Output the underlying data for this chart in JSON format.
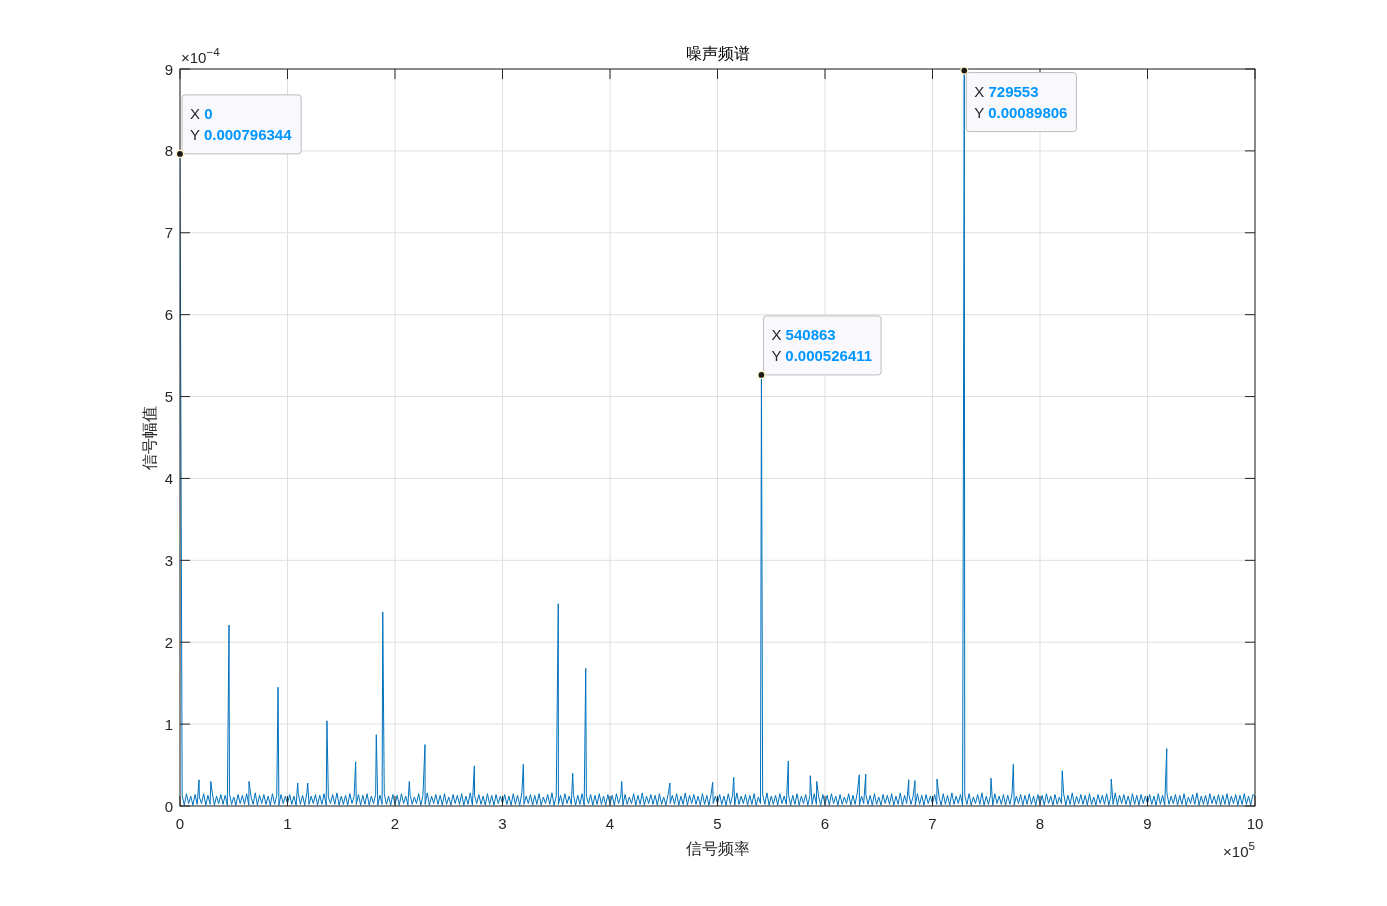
{
  "chart_data": {
    "type": "line",
    "title": "噪声频谱",
    "xlabel": "信号频率",
    "ylabel": "信号幅值",
    "color": "#0072bd",
    "xlim": [
      0,
      10
    ],
    "xticks": [
      0,
      1,
      2,
      3,
      4,
      5,
      6,
      7,
      8,
      9,
      10
    ],
    "ylim": [
      0,
      9
    ],
    "yticks": [
      0,
      1,
      2,
      3,
      4,
      5,
      6,
      7,
      8,
      9
    ],
    "grid": true,
    "annotations": [
      "×10$^{−4}$",
      "×10$^{5}$",
      {
        "text": "X 0\nY 0.000796344",
        "x": 0,
        "y": 7.96344
      },
      {
        "text": "X 540863\nY 0.000526411",
        "x": 5.40863,
        "y": 5.26411
      },
      {
        "text": "X 729553\nY 0.00089806",
        "x": 7.29553,
        "y": 8.9806
      }
    ],
    "x": [
      0,
      0.02,
      0.04,
      0.06,
      0.08,
      0.1,
      0.12,
      0.14,
      0.16,
      0.177,
      0.18,
      0.2,
      0.22,
      0.24,
      0.26,
      0.28,
      0.287,
      0.3,
      0.32,
      0.34,
      0.36,
      0.38,
      0.4,
      0.42,
      0.44,
      0.456,
      0.46,
      0.48,
      0.5,
      0.52,
      0.54,
      0.56,
      0.58,
      0.6,
      0.62,
      0.64,
      0.642,
      0.66,
      0.68,
      0.7,
      0.72,
      0.74,
      0.76,
      0.78,
      0.8,
      0.82,
      0.84,
      0.86,
      0.88,
      0.9,
      0.912,
      0.92,
      0.94,
      0.96,
      0.98,
      1,
      1.02,
      1.04,
      1.06,
      1.08,
      1.095,
      1.1,
      1.12,
      1.14,
      1.16,
      1.18,
      1.188,
      1.2,
      1.22,
      1.24,
      1.26,
      1.28,
      1.3,
      1.32,
      1.34,
      1.36,
      1.367,
      1.38,
      1.4,
      1.42,
      1.44,
      1.46,
      1.48,
      1.5,
      1.52,
      1.54,
      1.56,
      1.58,
      1.6,
      1.62,
      1.634,
      1.64,
      1.66,
      1.68,
      1.7,
      1.72,
      1.74,
      1.76,
      1.78,
      1.8,
      1.82,
      1.826,
      1.84,
      1.86,
      1.88,
      1.886,
      1.9,
      1.92,
      1.94,
      1.96,
      1.98,
      2,
      2.02,
      2.04,
      2.06,
      2.08,
      2.1,
      2.12,
      2.133,
      2.14,
      2.16,
      2.18,
      2.2,
      2.22,
      2.24,
      2.26,
      2.279,
      2.28,
      2.3,
      2.32,
      2.34,
      2.36,
      2.38,
      2.4,
      2.42,
      2.44,
      2.46,
      2.48,
      2.5,
      2.52,
      2.54,
      2.56,
      2.58,
      2.6,
      2.62,
      2.64,
      2.66,
      2.68,
      2.7,
      2.72,
      2.738,
      2.74,
      2.76,
      2.78,
      2.8,
      2.82,
      2.84,
      2.86,
      2.88,
      2.9,
      2.92,
      2.94,
      2.96,
      2.98,
      3,
      3.02,
      3.04,
      3.06,
      3.08,
      3.1,
      3.12,
      3.14,
      3.16,
      3.18,
      3.194,
      3.2,
      3.22,
      3.24,
      3.26,
      3.28,
      3.3,
      3.32,
      3.34,
      3.36,
      3.38,
      3.4,
      3.42,
      3.44,
      3.46,
      3.48,
      3.5,
      3.519,
      3.52,
      3.54,
      3.56,
      3.58,
      3.6,
      3.62,
      3.64,
      3.653,
      3.66,
      3.68,
      3.7,
      3.72,
      3.74,
      3.76,
      3.774,
      3.78,
      3.8,
      3.82,
      3.84,
      3.86,
      3.88,
      3.9,
      3.92,
      3.94,
      3.96,
      3.98,
      4,
      4.02,
      4.04,
      4.06,
      4.08,
      4.1,
      4.109,
      4.12,
      4.14,
      4.16,
      4.18,
      4.2,
      4.22,
      4.24,
      4.26,
      4.28,
      4.3,
      4.32,
      4.34,
      4.36,
      4.38,
      4.4,
      4.42,
      4.44,
      4.46,
      4.48,
      4.5,
      4.52,
      4.54,
      4.558,
      4.56,
      4.58,
      4.6,
      4.62,
      4.64,
      4.66,
      4.68,
      4.7,
      4.72,
      4.74,
      4.76,
      4.78,
      4.8,
      4.82,
      4.84,
      4.86,
      4.88,
      4.9,
      4.92,
      4.94,
      4.955,
      4.96,
      4.98,
      5,
      5.02,
      5.04,
      5.06,
      5.08,
      5.1,
      5.12,
      5.14,
      5.151,
      5.16,
      5.18,
      5.2,
      5.22,
      5.24,
      5.26,
      5.28,
      5.3,
      5.32,
      5.34,
      5.36,
      5.38,
      5.4,
      5.40863,
      5.42,
      5.44,
      5.46,
      5.48,
      5.5,
      5.52,
      5.54,
      5.56,
      5.58,
      5.6,
      5.62,
      5.64,
      5.659,
      5.66,
      5.68,
      5.7,
      5.72,
      5.74,
      5.76,
      5.78,
      5.8,
      5.82,
      5.84,
      5.86,
      5.863,
      5.88,
      5.9,
      5.92,
      5.923,
      5.94,
      5.96,
      5.98,
      6,
      6.02,
      6.04,
      6.06,
      6.08,
      6.1,
      6.12,
      6.14,
      6.16,
      6.18,
      6.2,
      6.22,
      6.24,
      6.26,
      6.28,
      6.3,
      6.319,
      6.32,
      6.34,
      6.36,
      6.379,
      6.38,
      6.4,
      6.42,
      6.44,
      6.46,
      6.48,
      6.5,
      6.52,
      6.54,
      6.56,
      6.58,
      6.6,
      6.62,
      6.64,
      6.66,
      6.68,
      6.7,
      6.72,
      6.74,
      6.76,
      6.779,
      6.78,
      6.8,
      6.82,
      6.837,
      6.84,
      6.86,
      6.88,
      6.9,
      6.92,
      6.94,
      6.96,
      6.98,
      7,
      7.02,
      7.04,
      7.042,
      7.06,
      7.08,
      7.1,
      7.12,
      7.14,
      7.16,
      7.18,
      7.2,
      7.22,
      7.24,
      7.26,
      7.28,
      7.29553,
      7.3,
      7.32,
      7.34,
      7.36,
      7.38,
      7.4,
      7.42,
      7.44,
      7.46,
      7.48,
      7.5,
      7.52,
      7.54,
      7.544,
      7.56,
      7.58,
      7.6,
      7.62,
      7.64,
      7.66,
      7.68,
      7.7,
      7.72,
      7.74,
      7.752,
      7.76,
      7.78,
      7.8,
      7.82,
      7.84,
      7.86,
      7.88,
      7.9,
      7.92,
      7.94,
      7.96,
      7.98,
      8,
      8.02,
      8.04,
      8.06,
      8.08,
      8.1,
      8.12,
      8.14,
      8.16,
      8.18,
      8.2,
      8.207,
      8.22,
      8.24,
      8.26,
      8.28,
      8.3,
      8.32,
      8.34,
      8.36,
      8.38,
      8.4,
      8.42,
      8.44,
      8.46,
      8.48,
      8.5,
      8.52,
      8.54,
      8.56,
      8.58,
      8.6,
      8.62,
      8.64,
      8.66,
      8.663,
      8.68,
      8.7,
      8.72,
      8.74,
      8.76,
      8.78,
      8.8,
      8.82,
      8.84,
      8.86,
      8.88,
      8.9,
      8.92,
      8.94,
      8.96,
      8.98,
      9,
      9.02,
      9.04,
      9.06,
      9.08,
      9.1,
      9.12,
      9.14,
      9.16,
      9.179,
      9.18,
      9.2,
      9.22,
      9.24,
      9.26,
      9.28,
      9.3,
      9.32,
      9.34,
      9.36,
      9.38,
      9.4,
      9.42,
      9.44,
      9.46,
      9.48,
      9.5,
      9.52,
      9.54,
      9.56,
      9.58,
      9.6,
      9.62,
      9.64,
      9.66,
      9.68,
      9.7,
      9.72,
      9.74,
      9.76,
      9.78,
      9.8,
      9.82,
      9.84,
      9.86,
      9.88,
      9.9,
      9.92,
      9.94,
      9.96,
      9.98,
      10
    ],
    "values": [
      7.96344,
      0.13,
      0.01,
      0.15,
      0.03,
      0.12,
      0.01,
      0.14,
      0.02,
      0.32,
      0.11,
      0.03,
      0.15,
      0.01,
      0.13,
      0.02,
      0.3,
      0.16,
      0.01,
      0.12,
      0.03,
      0.14,
      0.02,
      0.13,
      0.01,
      2.21,
      0.15,
      0.02,
      0.11,
      0.01,
      0.14,
      0.03,
      0.13,
      0.02,
      0.15,
      0.01,
      0.3,
      0.12,
      0.02,
      0.16,
      0.01,
      0.13,
      0.03,
      0.14,
      0.02,
      0.12,
      0.01,
      0.15,
      0.02,
      0.13,
      1.45,
      0.01,
      0.14,
      0.03,
      0.12,
      0.03,
      0.14,
      0.02,
      0.12,
      0.01,
      0.28,
      0.15,
      0.02,
      0.13,
      0.01,
      0.16,
      0.28,
      0.02,
      0.12,
      0.03,
      0.14,
      0.01,
      0.13,
      0.02,
      0.15,
      0.01,
      1.04,
      0.11,
      0.03,
      0.14,
      0.02,
      0.16,
      0.01,
      0.12,
      0.02,
      0.13,
      0.01,
      0.15,
      0.03,
      0.12,
      0.54,
      0.02,
      0.14,
      0.01,
      0.13,
      0.02,
      0.15,
      0.01,
      0.12,
      0.03,
      0.14,
      0.87,
      0.01,
      0.13,
      0.02,
      2.37,
      0.15,
      0.02,
      0.12,
      0.01,
      0.14,
      0.02,
      0.13,
      0.01,
      0.15,
      0.03,
      0.12,
      0.01,
      0.3,
      0.14,
      0.02,
      0.11,
      0.03,
      0.15,
      0.01,
      0.13,
      0.75,
      0.02,
      0.16,
      0.01,
      0.12,
      0.03,
      0.14,
      0.02,
      0.13,
      0.01,
      0.15,
      0.02,
      0.11,
      0.01,
      0.14,
      0.03,
      0.13,
      0.02,
      0.15,
      0.01,
      0.12,
      0.02,
      0.16,
      0.01,
      0.49,
      0.13,
      0.03,
      0.14,
      0.02,
      0.12,
      0.01,
      0.15,
      0.02,
      0.13,
      0.01,
      0.14,
      0.03,
      0.12,
      0.03,
      0.14,
      0.02,
      0.12,
      0.01,
      0.15,
      0.02,
      0.13,
      0.01,
      0.16,
      0.51,
      0.02,
      0.12,
      0.03,
      0.14,
      0.01,
      0.13,
      0.02,
      0.15,
      0.01,
      0.11,
      0.03,
      0.14,
      0.02,
      0.16,
      0.01,
      0.12,
      2.47,
      0.02,
      0.13,
      0.01,
      0.15,
      0.03,
      0.12,
      0.02,
      0.4,
      0.14,
      0.01,
      0.13,
      0.02,
      0.15,
      0.01,
      1.68,
      0.12,
      0.03,
      0.14,
      0.01,
      0.13,
      0.02,
      0.15,
      0.02,
      0.12,
      0.01,
      0.14,
      0.02,
      0.13,
      0.01,
      0.15,
      0.03,
      0.12,
      0.3,
      0.01,
      0.14,
      0.02,
      0.11,
      0.03,
      0.15,
      0.01,
      0.13,
      0.02,
      0.16,
      0.01,
      0.12,
      0.03,
      0.14,
      0.02,
      0.13,
      0.01,
      0.15,
      0.02,
      0.11,
      0.01,
      0.14,
      0.28,
      0.03,
      0.13,
      0.02,
      0.15,
      0.01,
      0.12,
      0.02,
      0.16,
      0.01,
      0.13,
      0.03,
      0.14,
      0.02,
      0.12,
      0.01,
      0.15,
      0.02,
      0.13,
      0.01,
      0.14,
      0.29,
      0.03,
      0.12,
      0.03,
      0.14,
      0.02,
      0.12,
      0.01,
      0.15,
      0.02,
      0.13,
      0.35,
      0.01,
      0.16,
      0.02,
      0.12,
      0.03,
      0.14,
      0.01,
      0.13,
      0.02,
      0.15,
      0.01,
      0.11,
      0.03,
      5.26411,
      0.14,
      0.02,
      0.16,
      0.01,
      0.12,
      0.02,
      0.13,
      0.01,
      0.15,
      0.03,
      0.12,
      0.02,
      0.55,
      0.14,
      0.01,
      0.13,
      0.02,
      0.15,
      0.01,
      0.12,
      0.03,
      0.14,
      0.01,
      0.13,
      0.37,
      0.02,
      0.15,
      0.02,
      0.3,
      0.12,
      0.01,
      0.14,
      0.02,
      0.13,
      0.01,
      0.15,
      0.03,
      0.12,
      0.01,
      0.14,
      0.02,
      0.11,
      0.03,
      0.15,
      0.01,
      0.13,
      0.02,
      0.16,
      0.38,
      0.01,
      0.12,
      0.03,
      0.39,
      0.14,
      0.02,
      0.13,
      0.01,
      0.15,
      0.02,
      0.11,
      0.01,
      0.14,
      0.03,
      0.13,
      0.02,
      0.15,
      0.01,
      0.12,
      0.02,
      0.16,
      0.01,
      0.13,
      0.03,
      0.32,
      0.14,
      0.02,
      0.12,
      0.31,
      0.01,
      0.15,
      0.02,
      0.13,
      0.01,
      0.14,
      0.03,
      0.12,
      0.03,
      0.14,
      0.02,
      0.33,
      0.12,
      0.01,
      0.15,
      0.02,
      0.13,
      0.01,
      0.16,
      0.02,
      0.12,
      0.03,
      0.14,
      0.01,
      8.9806,
      0.13,
      0.02,
      0.15,
      0.01,
      0.11,
      0.03,
      0.14,
      0.02,
      0.16,
      0.01,
      0.12,
      0.02,
      0.13,
      0.34,
      0.01,
      0.15,
      0.03,
      0.12,
      0.02,
      0.14,
      0.01,
      0.13,
      0.02,
      0.15,
      0.51,
      0.01,
      0.12,
      0.03,
      0.14,
      0.01,
      0.13,
      0.02,
      0.15,
      0.02,
      0.12,
      0.01,
      0.14,
      0.02,
      0.13,
      0.01,
      0.15,
      0.03,
      0.12,
      0.01,
      0.14,
      0.02,
      0.11,
      0.03,
      0.43,
      0.15,
      0.01,
      0.13,
      0.02,
      0.16,
      0.01,
      0.12,
      0.03,
      0.14,
      0.02,
      0.13,
      0.01,
      0.15,
      0.02,
      0.11,
      0.01,
      0.14,
      0.03,
      0.13,
      0.02,
      0.15,
      0.01,
      0.12,
      0.33,
      0.02,
      0.16,
      0.01,
      0.13,
      0.03,
      0.14,
      0.02,
      0.12,
      0.01,
      0.15,
      0.02,
      0.13,
      0.01,
      0.14,
      0.03,
      0.12,
      0.03,
      0.14,
      0.02,
      0.12,
      0.01,
      0.15,
      0.02,
      0.13,
      0.01,
      0.7,
      0.16,
      0.02,
      0.12,
      0.03,
      0.14,
      0.01,
      0.13,
      0.02,
      0.15,
      0.01,
      0.11,
      0.03,
      0.14,
      0.02,
      0.16,
      0.01,
      0.12,
      0.02,
      0.13,
      0.01,
      0.15,
      0.03,
      0.12,
      0.02,
      0.14,
      0.01,
      0.13,
      0.02,
      0.15,
      0.01,
      0.12,
      0.03,
      0.14,
      0.01,
      0.13,
      0.02,
      0.15,
      0.02,
      0.12,
      0.01,
      0.14,
      0.12
    ]
  }
}
